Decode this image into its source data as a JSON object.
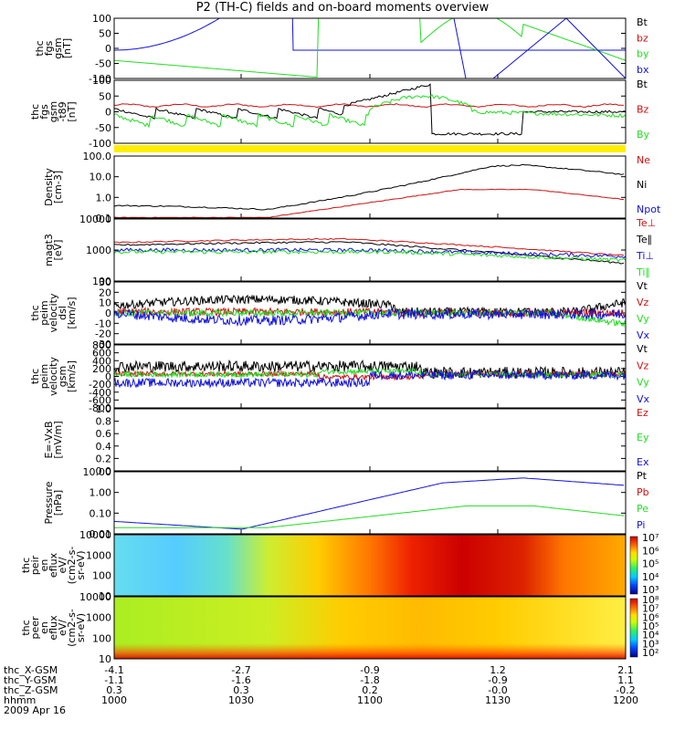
{
  "title": "P2 (TH-C) fields and on-board moments overview",
  "colors": {
    "black": "#000000",
    "red": "#cc1111",
    "green": "#22dd22",
    "blue": "#1111dd",
    "yellow": "#ffee00"
  },
  "chart_data": {
    "type": "line",
    "x_time_ticks": [
      "1000",
      "1030",
      "1100",
      "1130",
      "1200"
    ],
    "date": "2009 Apr 16",
    "ephemeris": {
      "labels": [
        "thc_X-GSM",
        "thc_Y-GSM",
        "thc_Z-GSM",
        "hhmm"
      ],
      "X": [
        "-4.1",
        "-2.7",
        "-0.9",
        "1.2",
        "2.1"
      ],
      "Y": [
        "-1.1",
        "-1.6",
        "-1.8",
        "-0.9",
        "1.1"
      ],
      "Z": [
        "0.3",
        "0.3",
        "0.2",
        "-0.0",
        "-0.2"
      ]
    },
    "panels": [
      {
        "id": "fgs",
        "ylabel": [
          "thc",
          "fgs",
          "gsm",
          "[nT]"
        ],
        "yticks": [
          "100",
          "50",
          "0",
          "-50",
          "-100"
        ],
        "legend": [
          {
            "t": "Bt",
            "c": "black"
          },
          {
            "t": "bz",
            "c": "red"
          },
          {
            "t": "by",
            "c": "green"
          },
          {
            "t": "bx",
            "c": "blue"
          }
        ]
      },
      {
        "id": "fgs2",
        "ylabel": [
          "thc",
          "fgs",
          "gsm",
          "-t89",
          "[nT]"
        ],
        "yticks": [
          "100",
          "50",
          "0",
          "-50",
          "-100"
        ],
        "legend": [
          {
            "t": "Bt",
            "c": "black"
          },
          {
            "t": "Bz",
            "c": "red"
          },
          {
            "t": "By",
            "c": "green"
          }
        ]
      },
      {
        "id": "density",
        "ylabel": [
          "Density",
          "[cm-3]"
        ],
        "yticks": [
          "100.0",
          "10.0",
          "1.0",
          "0.1"
        ],
        "legend": [
          {
            "t": "Ne",
            "c": "red"
          },
          {
            "t": "Ni",
            "c": "black"
          },
          {
            "t": "Npot",
            "c": "blue"
          }
        ]
      },
      {
        "id": "temp",
        "ylabel": [
          "magt3",
          "[eV]"
        ],
        "yticks": [
          "10000",
          "1000",
          "100"
        ],
        "legend": [
          {
            "t": "Te⊥",
            "c": "red"
          },
          {
            "t": "Te∥",
            "c": "black"
          },
          {
            "t": "Ti⊥",
            "c": "blue"
          },
          {
            "t": "Ti∥",
            "c": "green"
          }
        ]
      },
      {
        "id": "veldsl",
        "ylabel": [
          "thc",
          "peim",
          "velocity",
          "dsl",
          "[km/s]"
        ],
        "yticks": [
          "30",
          "20",
          "10",
          "0",
          "-10",
          "-20",
          "-30"
        ],
        "legend": [
          {
            "t": "Vt",
            "c": "black"
          },
          {
            "t": "Vz",
            "c": "red"
          },
          {
            "t": "Vy",
            "c": "green"
          },
          {
            "t": "Vx",
            "c": "blue"
          }
        ]
      },
      {
        "id": "velgsm",
        "ylabel": [
          "thc",
          "peim",
          "velocity",
          "gsm",
          "[km/s]"
        ],
        "yticks": [
          "800",
          "600",
          "400",
          "200",
          "0",
          "-200",
          "-400",
          "-600",
          "-800"
        ],
        "legend": [
          {
            "t": "Vt",
            "c": "black"
          },
          {
            "t": "Vz",
            "c": "red"
          },
          {
            "t": "Vy",
            "c": "green"
          },
          {
            "t": "Vx",
            "c": "blue"
          }
        ]
      },
      {
        "id": "efield",
        "ylabel": [
          "E=-VxB",
          "[mV/m]"
        ],
        "yticks": [
          "1.0",
          "0.8",
          "0.6",
          "0.4",
          "0.2",
          "0.0"
        ],
        "legend": [
          {
            "t": "Ez",
            "c": "red"
          },
          {
            "t": "Ey",
            "c": "green"
          },
          {
            "t": "Ex",
            "c": "blue"
          }
        ]
      },
      {
        "id": "pressure",
        "ylabel": [
          "Pressure",
          "[nPa]"
        ],
        "yticks": [
          "10.00",
          "1.00",
          "0.10",
          "0.01"
        ],
        "legend": [
          {
            "t": "Pt",
            "c": "black"
          },
          {
            "t": "Pb",
            "c": "red"
          },
          {
            "t": "Pe",
            "c": "green"
          },
          {
            "t": "Pi",
            "c": "blue"
          }
        ]
      },
      {
        "id": "ionspec",
        "ylabel": [
          "thc",
          "peir",
          "en",
          "eflux",
          "eV/",
          "(cm2-s-",
          "sr-eV)"
        ],
        "yticks": [
          "10000",
          "1000",
          "100",
          "10"
        ],
        "colorbar": [
          "10⁷",
          "10⁶",
          "10⁵",
          "10⁴",
          "10³"
        ]
      },
      {
        "id": "espec",
        "ylabel": [
          "thc",
          "peer",
          "en",
          "eflux",
          "eV/",
          "(cm2-s-",
          "sr-eV)"
        ],
        "yticks": [
          "10000",
          "1000",
          "100",
          "10"
        ],
        "colorbar": [
          "10⁸",
          "10⁷",
          "10⁶",
          "10⁵",
          "10⁴",
          "10³",
          "10²"
        ]
      }
    ]
  }
}
